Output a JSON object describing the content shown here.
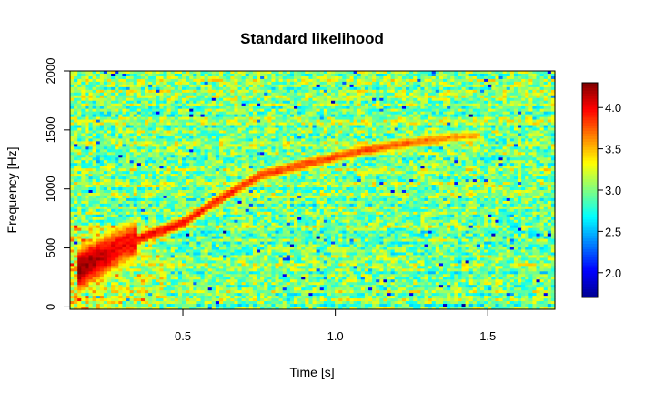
{
  "chart_data": {
    "type": "heatmap",
    "title": "Standard likelihood",
    "xlabel": "Time [s]",
    "ylabel": "Frequency [Hz]",
    "xlim": [
      0.13,
      1.72
    ],
    "ylim": [
      -20,
      2000
    ],
    "x_ticks": [
      {
        "value": 0.5,
        "label": "0.5"
      },
      {
        "value": 1.0,
        "label": "1.0"
      },
      {
        "value": 1.5,
        "label": "1.5"
      }
    ],
    "y_ticks": [
      {
        "value": 0,
        "label": "0"
      },
      {
        "value": 500,
        "label": "500"
      },
      {
        "value": 1000,
        "label": "1000"
      },
      {
        "value": 1500,
        "label": "1500"
      },
      {
        "value": 2000,
        "label": "2000"
      }
    ],
    "colorbar": {
      "range": [
        1.7,
        4.3
      ],
      "ticks": [
        {
          "value": 2.0,
          "label": "2.0"
        },
        {
          "value": 2.5,
          "label": "2.5"
        },
        {
          "value": 3.0,
          "label": "3.0"
        },
        {
          "value": 3.5,
          "label": "3.5"
        },
        {
          "value": 4.0,
          "label": "4.0"
        }
      ],
      "colormap": [
        "#00008f",
        "#0000ff",
        "#0080ff",
        "#00ffff",
        "#80ff80",
        "#ffff00",
        "#ff8000",
        "#ff0000",
        "#800000"
      ]
    },
    "background_level": 3.0,
    "ridge": {
      "x": [
        0.15,
        0.2,
        0.25,
        0.3,
        0.4,
        0.5,
        0.6,
        0.75,
        0.9,
        1.0,
        1.1,
        1.2,
        1.3,
        1.4,
        1.48
      ],
      "y": [
        300,
        380,
        440,
        520,
        620,
        710,
        880,
        1110,
        1210,
        1270,
        1330,
        1370,
        1410,
        1440,
        1450
      ],
      "value": [
        4.3,
        4.2,
        4.1,
        4.0,
        4.0,
        3.95,
        3.9,
        3.85,
        3.8,
        3.8,
        3.8,
        3.75,
        3.7,
        3.6,
        3.5
      ]
    }
  }
}
